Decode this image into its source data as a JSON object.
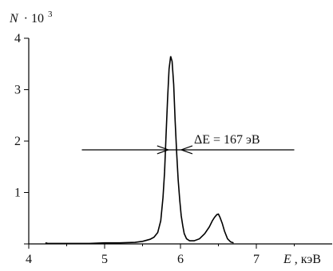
{
  "chart_data": {
    "type": "line",
    "title": "",
    "ylabel_symbol": "N",
    "ylabel_multiplier": "· 10",
    "ylabel_exponent": "3",
    "xlabel_symbol": "E",
    "xlabel_unit": ", кэВ",
    "xlim": [
      4,
      8
    ],
    "ylim": [
      0,
      4
    ],
    "x_ticks": [
      4,
      5,
      6,
      7
    ],
    "x_tick_labels": [
      "4",
      "5",
      "6",
      "7"
    ],
    "y_ticks": [
      0,
      1,
      2,
      3,
      4
    ],
    "y_tick_labels": [
      "",
      "1",
      "2",
      "3",
      "4"
    ],
    "grid": false,
    "series": [
      {
        "x": [
          4.22,
          4.25,
          4.3,
          4.4,
          4.6,
          4.8,
          5.0,
          5.2,
          5.4,
          5.5,
          5.6,
          5.65,
          5.7,
          5.74,
          5.77,
          5.79,
          5.81,
          5.83,
          5.85,
          5.87,
          5.89,
          5.91,
          5.93,
          5.95,
          5.97,
          5.99,
          6.01,
          6.03,
          6.05,
          6.08,
          6.12,
          6.18,
          6.25,
          6.32,
          6.38,
          6.42,
          6.45,
          6.48,
          6.5,
          6.52,
          6.55,
          6.58,
          6.62,
          6.66,
          6.7
        ],
        "y": [
          0.02,
          0.01,
          0.01,
          0.01,
          0.01,
          0.01,
          0.02,
          0.02,
          0.03,
          0.05,
          0.09,
          0.13,
          0.22,
          0.45,
          0.9,
          1.4,
          2.1,
          2.8,
          3.4,
          3.65,
          3.55,
          3.1,
          2.4,
          1.75,
          1.25,
          0.85,
          0.55,
          0.35,
          0.2,
          0.1,
          0.06,
          0.06,
          0.1,
          0.2,
          0.33,
          0.45,
          0.52,
          0.57,
          0.58,
          0.52,
          0.4,
          0.25,
          0.1,
          0.04,
          0.02
        ]
      }
    ],
    "fwhm_annotation": {
      "text": "ΔE = 167 эВ",
      "y": 1.83,
      "x_left_edge": 5.84,
      "x_right_edge": 6.01,
      "line_x_start": 4.7,
      "line_x_end": 7.5
    }
  }
}
